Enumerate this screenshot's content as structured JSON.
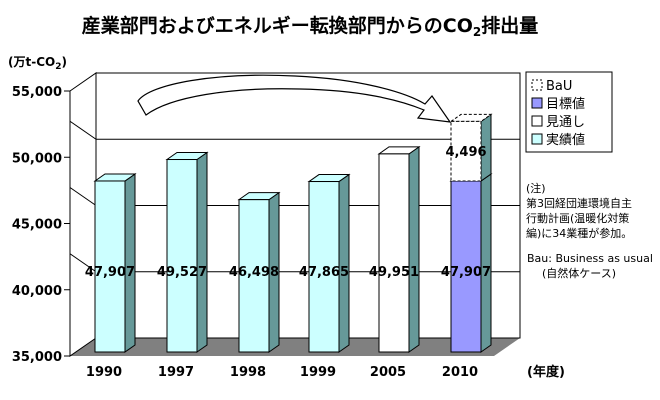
{
  "chart_data": {
    "type": "bar",
    "title": "産業部門およびエネルギー転換部門からのCO",
    "title_subscript": "2",
    "title_suffix": "排出量",
    "ylabel": "(万t-CO",
    "ylabel_subscript": "2",
    "ylabel_suffix": ")",
    "xlabel": "(年度)",
    "ylim": [
      35000,
      55000
    ],
    "yticks": [
      35000,
      40000,
      45000,
      50000,
      55000
    ],
    "ytick_labels": [
      "35,000",
      "40,000",
      "45,000",
      "50,000",
      "55,000"
    ],
    "categories": [
      "1990",
      "1997",
      "1998",
      "1999",
      "2005",
      "2010"
    ],
    "bars": [
      {
        "category": "1990",
        "value": 47907,
        "label": "47,907",
        "series": "実績値"
      },
      {
        "category": "1997",
        "value": 49527,
        "label": "49,527",
        "series": "実績値"
      },
      {
        "category": "1998",
        "value": 46498,
        "label": "46,498",
        "series": "実績値"
      },
      {
        "category": "1999",
        "value": 47865,
        "label": "47,865",
        "series": "実績値"
      },
      {
        "category": "2005",
        "value": 49951,
        "label": "49,951",
        "series": "見通し"
      },
      {
        "category": "2010",
        "value": 47907,
        "label": "47,907",
        "series": "目標値"
      }
    ],
    "bau": {
      "category": "2010",
      "base": 47907,
      "increment": 4496,
      "label": "4,496",
      "series": "BaU"
    },
    "legend": [
      {
        "name": "BaU",
        "color": "#ffffff",
        "dashed": true
      },
      {
        "name": "目標値",
        "color": "#9999ff",
        "dashed": false
      },
      {
        "name": "見通し",
        "color": "#ffffff",
        "dashed": false
      },
      {
        "name": "実績値",
        "color": "#ccffff",
        "dashed": false
      }
    ],
    "legend_position": "right",
    "notes": [
      "(注)",
      "第3回経団連環境自主",
      "行動計画(温暖化対策",
      "編)に34業種が参加。"
    ],
    "bau_note": [
      "Bau: Business as usual",
      "(自然体ケース)"
    ],
    "colors": {
      "actual": "#ccffff",
      "forecast": "#ffffff",
      "target": "#9999ff",
      "side": "#669999",
      "floor": "#808080",
      "wall": "#ffffff"
    }
  }
}
